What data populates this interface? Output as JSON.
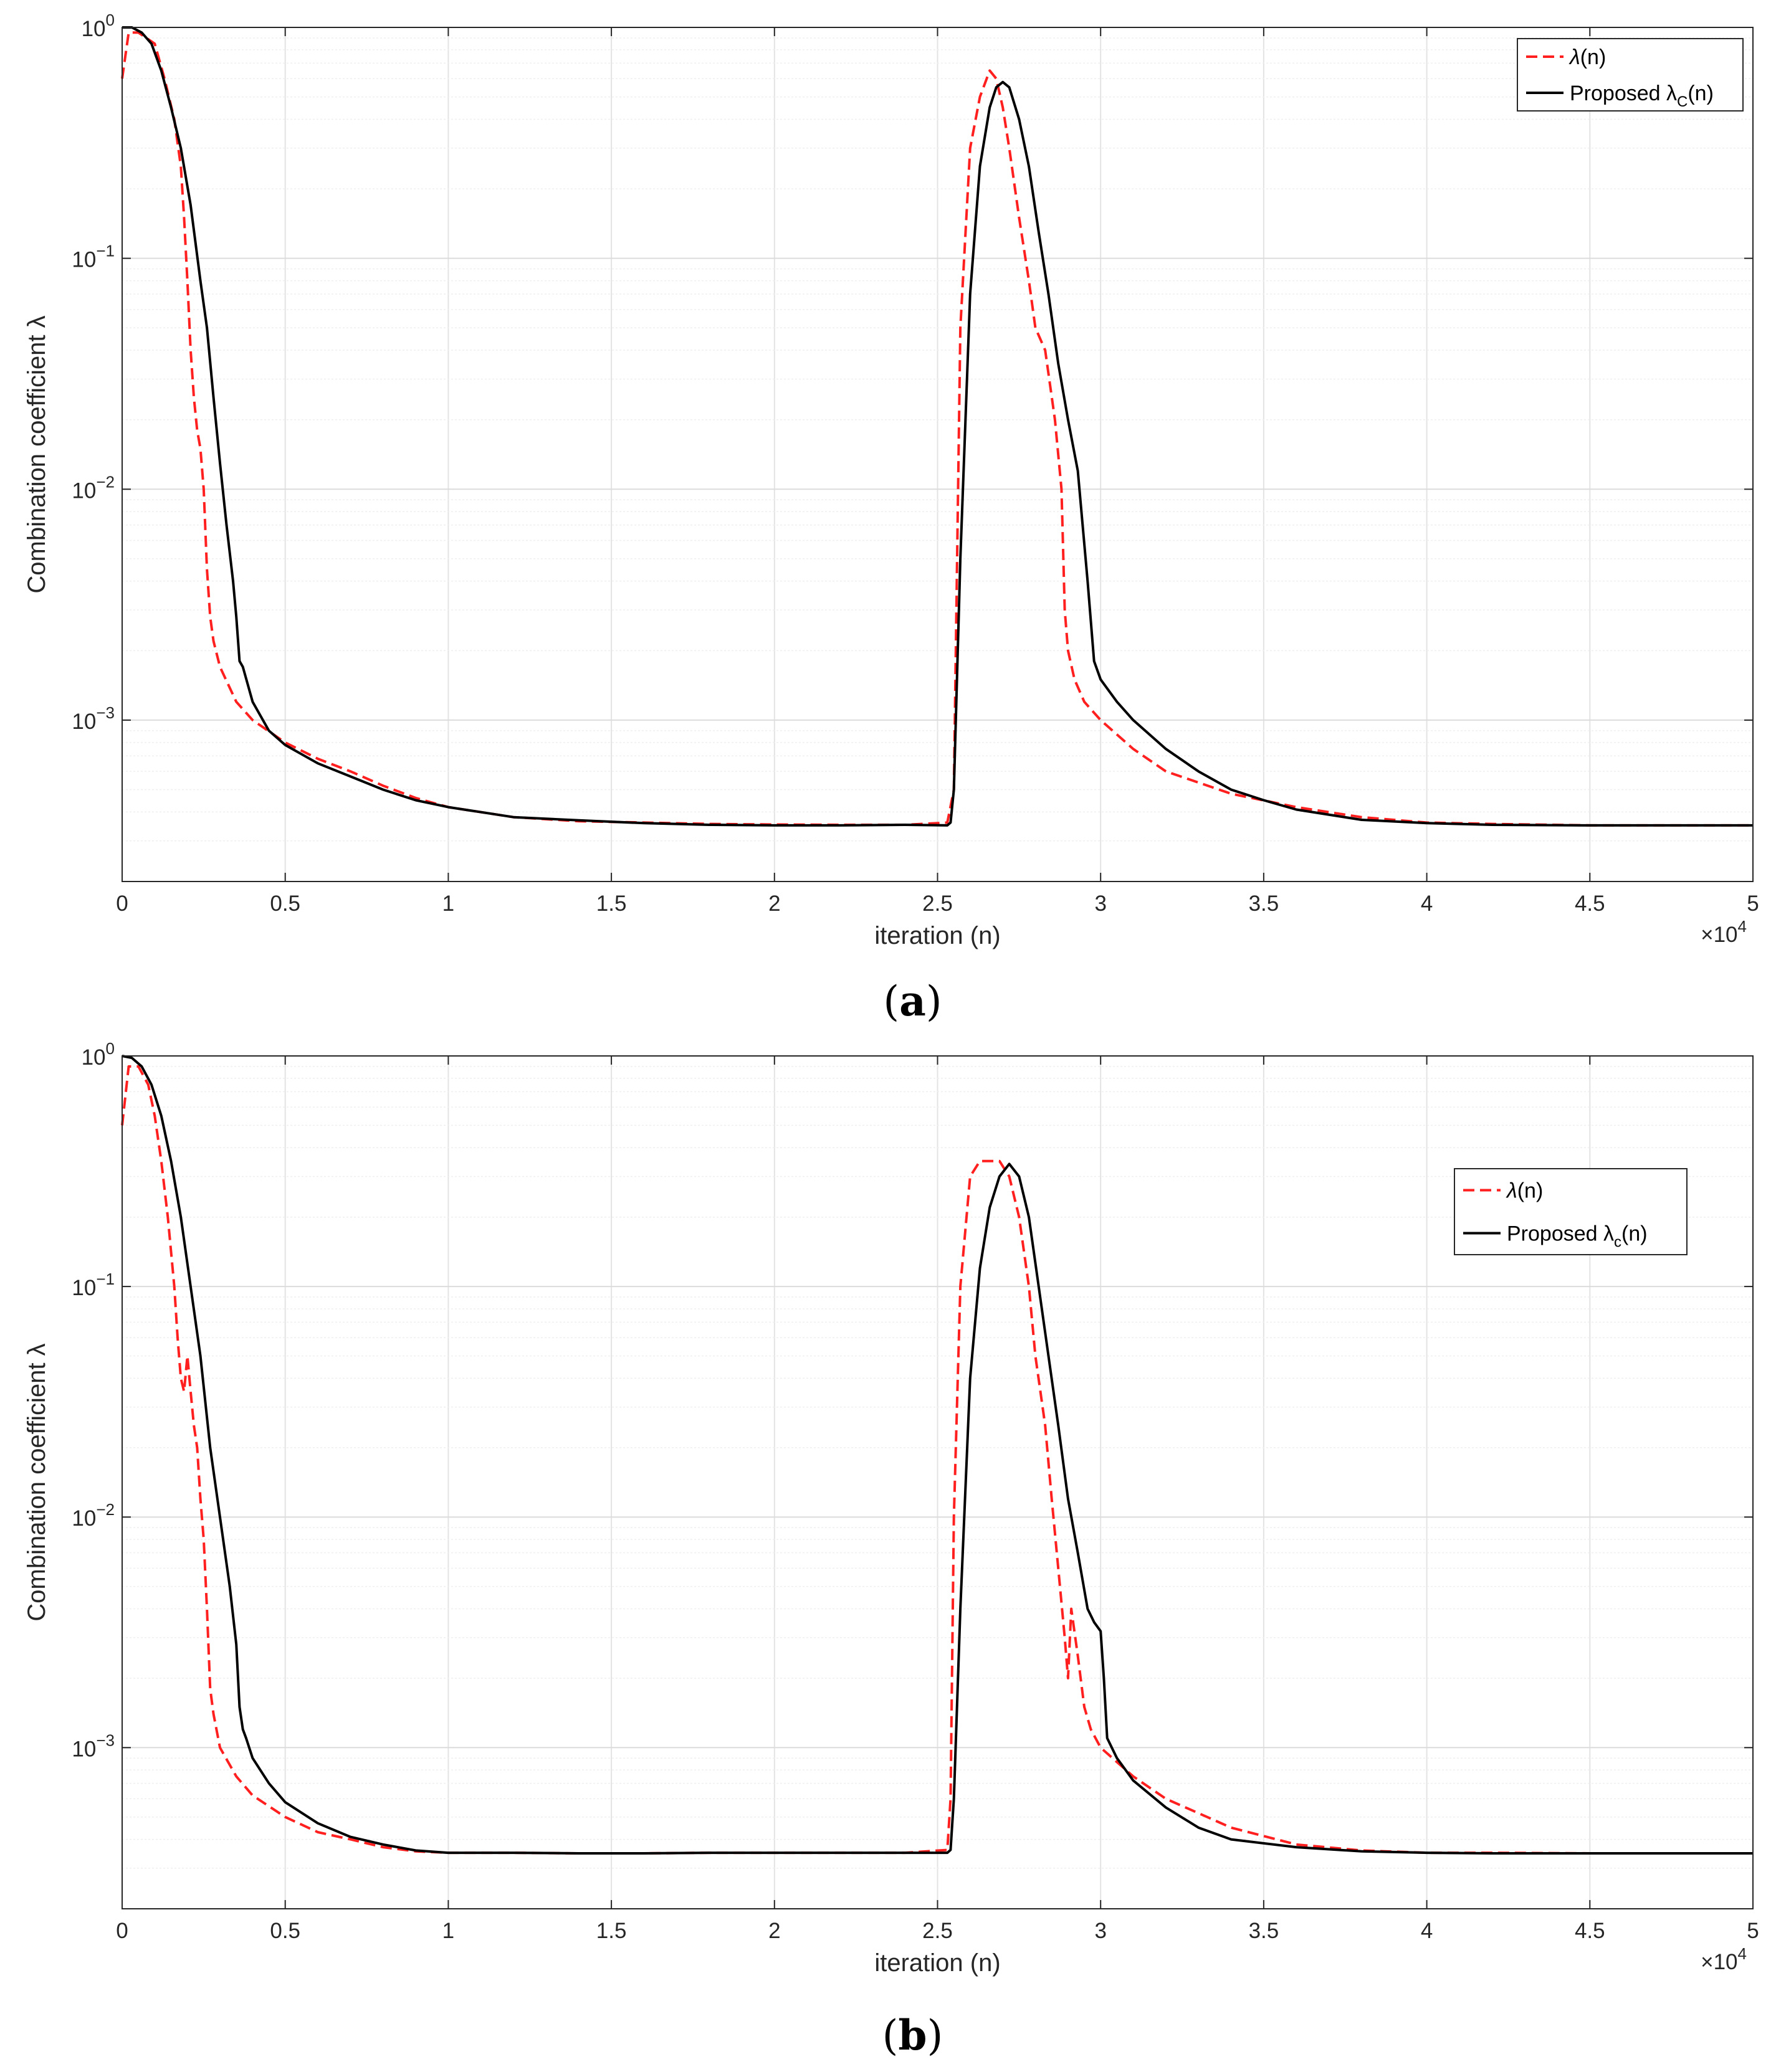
{
  "colors": {
    "lambda": "#ff1f1f",
    "proposed": "#000000",
    "grid": "#e6e6e6",
    "axis": "#262626"
  },
  "chart_data": [
    {
      "type": "line",
      "panel_label": "(a)",
      "panel_label_parts": {
        "open": "(",
        "letter": "a",
        "close": ")"
      },
      "xlabel": "iteration (n)",
      "ylabel": "Combination coefficient λ",
      "x_multiplier": "×10",
      "x_multiplier_exp": "4",
      "xlim": [
        0,
        50000
      ],
      "ylim": [
        0.0002,
        1
      ],
      "yscale": "log",
      "grid": true,
      "legend": "top-right",
      "xticks": [
        "0",
        "0.5",
        "1",
        "1.5",
        "2",
        "2.5",
        "3",
        "3.5",
        "4",
        "4.5",
        "5"
      ],
      "yticks": [
        {
          "base": "10",
          "exp": "0",
          "value": 1
        },
        {
          "base": "10",
          "exp": "−1",
          "value": 0.1
        },
        {
          "base": "10",
          "exp": "−2",
          "value": 0.01
        },
        {
          "base": "10",
          "exp": "−3",
          "value": 0.001
        }
      ],
      "legend_entries": [
        {
          "sym": "λ",
          "text": "(n)",
          "sub": ""
        },
        {
          "text": "Proposed λ",
          "sub": "C",
          "after": "(n)"
        }
      ],
      "series": [
        {
          "name": "λ(n)",
          "style": "dashed",
          "x": [
            0,
            200,
            500,
            1000,
            1300,
            1600,
            1800,
            1900,
            2000,
            2100,
            2200,
            2300,
            2400,
            2500,
            2600,
            2700,
            2800,
            3000,
            3500,
            4000,
            5000,
            6000,
            7000,
            8000,
            9000,
            10000,
            12000,
            14000,
            16000,
            18000,
            20000,
            22000,
            24000,
            25300,
            25500,
            25700,
            26000,
            26300,
            26600,
            26800,
            27000,
            27200,
            27500,
            27800,
            28000,
            28300,
            28600,
            28800,
            28900,
            29000,
            29200,
            29500,
            30000,
            31000,
            32000,
            34000,
            36000,
            38000,
            40000,
            42000,
            45000,
            48000,
            50000
          ],
          "y": [
            0.6,
            0.95,
            0.95,
            0.85,
            0.6,
            0.4,
            0.25,
            0.15,
            0.08,
            0.04,
            0.025,
            0.018,
            0.015,
            0.01,
            0.0045,
            0.0028,
            0.0022,
            0.0017,
            0.0012,
            0.001,
            0.0008,
            0.00068,
            0.0006,
            0.00052,
            0.00046,
            0.00042,
            0.00038,
            0.000365,
            0.00036,
            0.000355,
            0.000353,
            0.000352,
            0.000352,
            0.00036,
            0.0005,
            0.05,
            0.3,
            0.5,
            0.65,
            0.6,
            0.45,
            0.3,
            0.15,
            0.08,
            0.05,
            0.04,
            0.02,
            0.01,
            0.003,
            0.002,
            0.0015,
            0.0012,
            0.001,
            0.00075,
            0.0006,
            0.00048,
            0.00042,
            0.00038,
            0.00036,
            0.000355,
            0.00035,
            0.00035,
            0.00035
          ]
        },
        {
          "name": "Proposed λC(n)",
          "style": "solid",
          "x": [
            0,
            300,
            600,
            900,
            1200,
            1500,
            1800,
            2100,
            2400,
            2600,
            2800,
            3000,
            3200,
            3400,
            3500,
            3600,
            3700,
            4000,
            4500,
            5000,
            6000,
            7000,
            8000,
            9000,
            10000,
            12000,
            14000,
            16000,
            18000,
            20000,
            22000,
            24000,
            25300,
            25400,
            25500,
            25700,
            26000,
            26300,
            26600,
            26800,
            27000,
            27200,
            27500,
            27800,
            28100,
            28400,
            28700,
            29000,
            29300,
            29600,
            29800,
            30000,
            30500,
            31000,
            32000,
            33000,
            34000,
            35000,
            36000,
            38000,
            40000,
            42000,
            45000,
            48000,
            50000
          ],
          "y": [
            1,
            1,
            0.95,
            0.85,
            0.65,
            0.45,
            0.3,
            0.17,
            0.08,
            0.05,
            0.025,
            0.013,
            0.007,
            0.004,
            0.0028,
            0.0018,
            0.0017,
            0.0012,
            0.0009,
            0.00078,
            0.00065,
            0.00057,
            0.0005,
            0.00045,
            0.00042,
            0.00038,
            0.000368,
            0.000358,
            0.000352,
            0.00035,
            0.00035,
            0.000352,
            0.00035,
            0.00036,
            0.0005,
            0.005,
            0.07,
            0.25,
            0.45,
            0.55,
            0.58,
            0.55,
            0.4,
            0.25,
            0.13,
            0.07,
            0.035,
            0.02,
            0.012,
            0.004,
            0.0018,
            0.0015,
            0.0012,
            0.001,
            0.00075,
            0.0006,
            0.0005,
            0.00045,
            0.00041,
            0.00037,
            0.000358,
            0.000352,
            0.00035,
            0.00035,
            0.00035
          ]
        }
      ]
    },
    {
      "type": "line",
      "panel_label": "(b)",
      "panel_label_parts": {
        "open": "(",
        "letter": "b",
        "close": ")"
      },
      "xlabel": "iteration (n)",
      "ylabel": "Combination coefficient λ",
      "x_multiplier": "×10",
      "x_multiplier_exp": "4",
      "xlim": [
        0,
        50000
      ],
      "ylim": [
        0.0002,
        1
      ],
      "yscale": "log",
      "grid": true,
      "legend": "right",
      "xticks": [
        "0",
        "0.5",
        "1",
        "1.5",
        "2",
        "2.5",
        "3",
        "3.5",
        "4",
        "4.5",
        "5"
      ],
      "yticks": [
        {
          "base": "10",
          "exp": "0",
          "value": 1
        },
        {
          "base": "10",
          "exp": "−1",
          "value": 0.1
        },
        {
          "base": "10",
          "exp": "−2",
          "value": 0.01
        },
        {
          "base": "10",
          "exp": "−3",
          "value": 0.001
        }
      ],
      "legend_entries": [
        {
          "sym": "λ",
          "text": "(n)",
          "sub": ""
        },
        {
          "text": "Proposed λ",
          "sub": "c",
          "after": "(n)"
        }
      ],
      "series": [
        {
          "name": "λ(n)",
          "style": "dashed",
          "x": [
            0,
            200,
            500,
            800,
            1000,
            1200,
            1400,
            1600,
            1700,
            1800,
            1900,
            2000,
            2100,
            2200,
            2300,
            2400,
            2500,
            2600,
            2700,
            2800,
            3000,
            3500,
            4000,
            5000,
            6000,
            7000,
            8000,
            9000,
            10000,
            12000,
            14000,
            16000,
            18000,
            20000,
            22000,
            24000,
            25300,
            25400,
            25500,
            25700,
            26000,
            26300,
            26600,
            26900,
            27200,
            27500,
            27800,
            28000,
            28300,
            28500,
            28700,
            28900,
            29000,
            29100,
            29300,
            29500,
            29700,
            30000,
            31000,
            32000,
            34000,
            36000,
            38000,
            40000,
            42000,
            45000,
            48000,
            50000
          ],
          "y": [
            0.5,
            0.9,
            0.9,
            0.75,
            0.55,
            0.35,
            0.2,
            0.1,
            0.06,
            0.04,
            0.035,
            0.05,
            0.035,
            0.025,
            0.02,
            0.012,
            0.008,
            0.004,
            0.0018,
            0.0014,
            0.001,
            0.00075,
            0.00062,
            0.0005,
            0.00043,
            0.0004,
            0.00037,
            0.000355,
            0.00035,
            0.00035,
            0.000348,
            0.000348,
            0.00035,
            0.00035,
            0.00035,
            0.00035,
            0.00036,
            0.0006,
            0.01,
            0.1,
            0.3,
            0.35,
            0.35,
            0.35,
            0.3,
            0.2,
            0.1,
            0.05,
            0.025,
            0.012,
            0.006,
            0.003,
            0.002,
            0.004,
            0.0025,
            0.0015,
            0.0012,
            0.001,
            0.00075,
            0.0006,
            0.00045,
            0.00038,
            0.000358,
            0.00035,
            0.00035,
            0.000348,
            0.000348,
            0.000348
          ]
        },
        {
          "name": "Proposed λc(n)",
          "style": "solid",
          "x": [
            0,
            300,
            600,
            900,
            1200,
            1500,
            1800,
            2100,
            2400,
            2700,
            3000,
            3300,
            3500,
            3600,
            3700,
            3800,
            4000,
            4500,
            5000,
            6000,
            7000,
            8000,
            9000,
            10000,
            12000,
            14000,
            16000,
            18000,
            20000,
            22000,
            24000,
            25300,
            25400,
            25500,
            25700,
            26000,
            26300,
            26600,
            26900,
            27200,
            27500,
            27800,
            28100,
            28400,
            28700,
            29000,
            29300,
            29600,
            29800,
            30000,
            30100,
            30200,
            30500,
            31000,
            32000,
            33000,
            34000,
            36000,
            38000,
            40000,
            42000,
            45000,
            48000,
            50000
          ],
          "y": [
            1,
            0.98,
            0.9,
            0.75,
            0.55,
            0.35,
            0.2,
            0.1,
            0.05,
            0.02,
            0.01,
            0.005,
            0.0028,
            0.0015,
            0.0012,
            0.0011,
            0.0009,
            0.0007,
            0.00058,
            0.00047,
            0.00041,
            0.00038,
            0.000358,
            0.00035,
            0.00035,
            0.000348,
            0.000348,
            0.00035,
            0.00035,
            0.00035,
            0.00035,
            0.00035,
            0.00036,
            0.0006,
            0.004,
            0.04,
            0.12,
            0.22,
            0.3,
            0.34,
            0.3,
            0.2,
            0.1,
            0.05,
            0.025,
            0.012,
            0.007,
            0.004,
            0.0035,
            0.0032,
            0.002,
            0.0011,
            0.0009,
            0.00072,
            0.00055,
            0.00045,
            0.0004,
            0.00037,
            0.000355,
            0.00035,
            0.000348,
            0.000348,
            0.000348,
            0.000348
          ]
        }
      ]
    }
  ]
}
